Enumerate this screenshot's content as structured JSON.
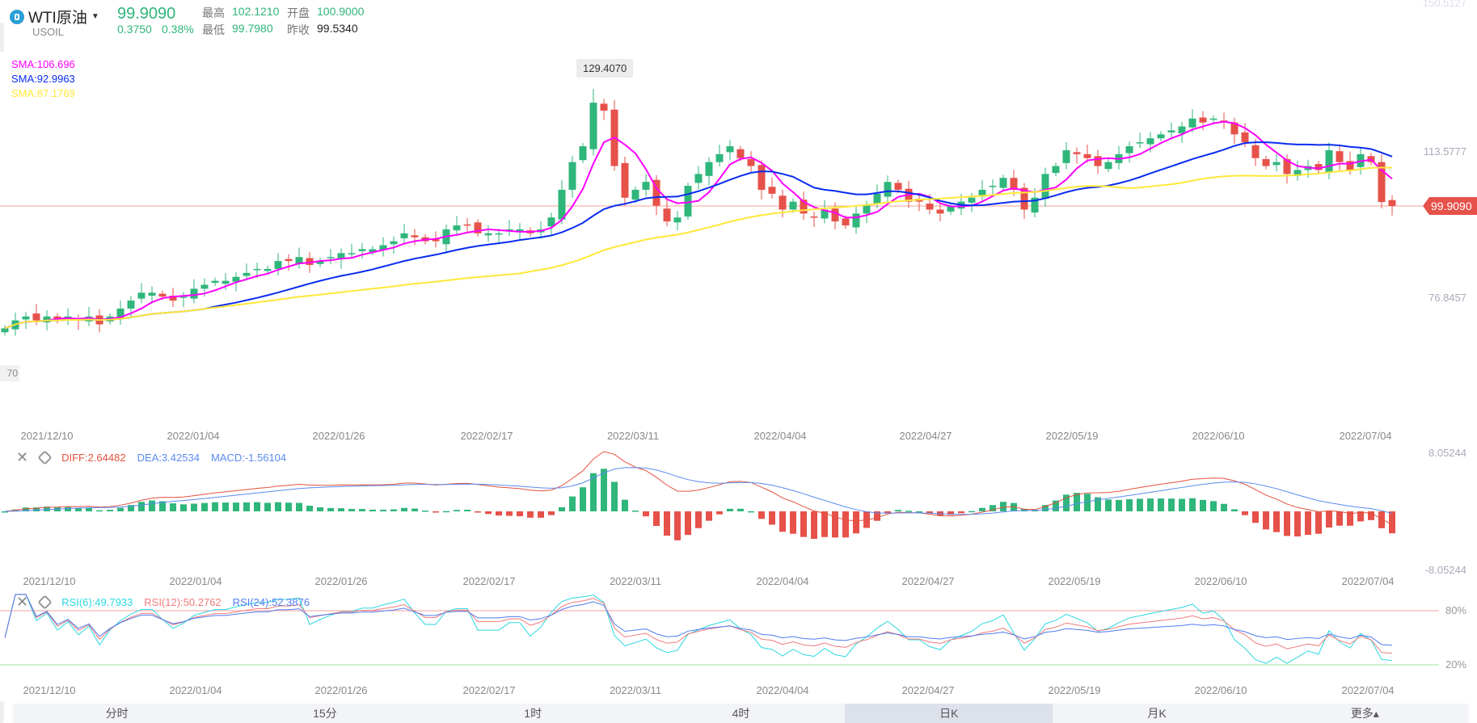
{
  "header": {
    "title": "WTI原油",
    "symbol": "USOIL",
    "last": "99.9090",
    "change": "0.3750",
    "change_pct": "0.38%",
    "high_label": "最高",
    "high": "102.1210",
    "open_label": "开盘",
    "open": "100.9000",
    "low_label": "最低",
    "low": "99.7980",
    "prev_label": "昨收",
    "prev": "99.5340"
  },
  "sma_legend": [
    {
      "text": "SMA:106.696",
      "color": "#ff00ff",
      "period": 5
    },
    {
      "text": "SMA:92.9963",
      "color": "#0a2cf0",
      "period": 20
    },
    {
      "text": "SMA:87.1769",
      "color": "#ffe83a",
      "period": 50
    }
  ],
  "axis": {
    "price_top": "150.5127",
    "price_mid": "113.5777",
    "price_low": "76.8457",
    "last_tag": "99.9090",
    "max_tip": "129.4070",
    "min_tag": "70",
    "macd_top": "8.05244",
    "macd_bottom": "-8.05244",
    "rsi_high": "80%",
    "rsi_low": "20%"
  },
  "dates": [
    "2021/12/10",
    "2022/01/04",
    "2022/01/26",
    "2022/02/17",
    "2022/03/11",
    "2022/04/04",
    "2022/04/27",
    "2022/05/19",
    "2022/06/10",
    "2022/07/04"
  ],
  "macd": {
    "diff": "DIFF:2.64482",
    "dea": "DEA:3.42534",
    "macd": "MACD:-1.56104"
  },
  "rsi": {
    "r6": "RSI(6):49.7933",
    "r12": "RSI(12):50.2762",
    "r24": "RSI(24):52.3876"
  },
  "tabs": [
    "分时",
    "15分",
    "1时",
    "4时",
    "日K",
    "月K",
    "更多▴"
  ],
  "active_tab": 4,
  "colors": {
    "up": "#2fb67b",
    "down": "#e6514a",
    "diff": "#e4513f",
    "dea": "#5b8af0",
    "rsi6": "#2ad8e0",
    "rsi12": "#f07a7a",
    "rsi24": "#4f7cf0"
  },
  "chart_data": {
    "type": "candlestick",
    "ylim": [
      65,
      150.5127
    ],
    "highest": 129.407,
    "closes": [
      69,
      71,
      72,
      71,
      72,
      71,
      72,
      71,
      72,
      70,
      72,
      74,
      76,
      78,
      78,
      77,
      76,
      77,
      79,
      80,
      81,
      81,
      82,
      83,
      84,
      84,
      86,
      86,
      87,
      85,
      86,
      87,
      88,
      88,
      89,
      89,
      90,
      91,
      93,
      92,
      91,
      91,
      94,
      95,
      95,
      93,
      93,
      93,
      94,
      94,
      93,
      94,
      97,
      104,
      111,
      115,
      126,
      124,
      110,
      102,
      104,
      106,
      100,
      96,
      97,
      105,
      108,
      111,
      113,
      115,
      112,
      110,
      104,
      103,
      99,
      101,
      98,
      97,
      99,
      96,
      95,
      98,
      100,
      103,
      106,
      104,
      101,
      101,
      99,
      98,
      100,
      101,
      102,
      104,
      105,
      107,
      104,
      99,
      102,
      108,
      110,
      114,
      113,
      112,
      110,
      111,
      113,
      115,
      116,
      117,
      118,
      119,
      120,
      122,
      121,
      122,
      121,
      118,
      116,
      112,
      110,
      111,
      108,
      109,
      110,
      109,
      114,
      111,
      109,
      113,
      111,
      100.9,
      99.909
    ]
  }
}
